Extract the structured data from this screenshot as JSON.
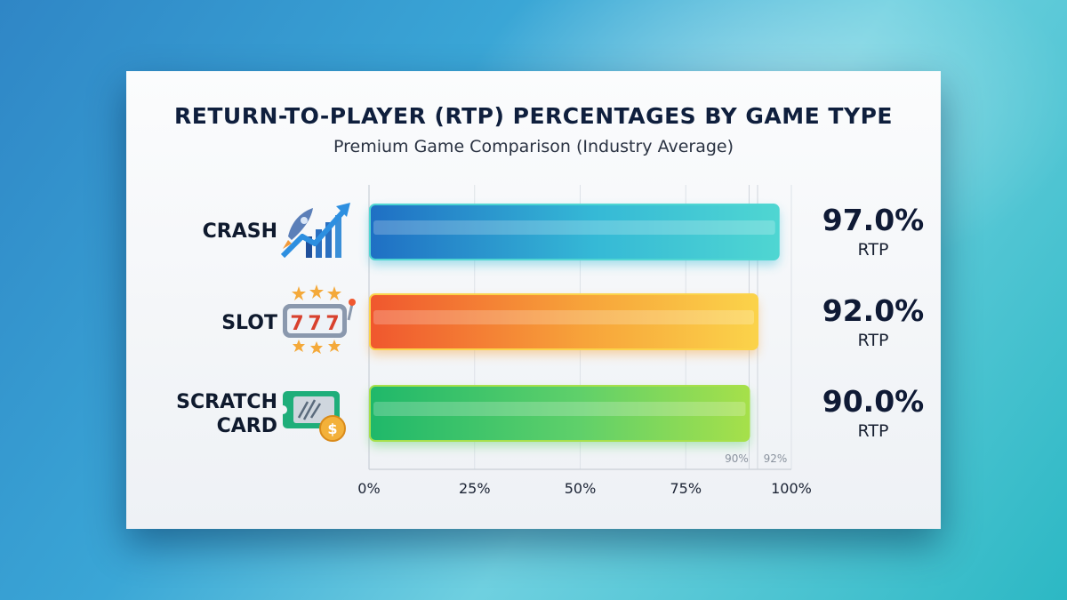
{
  "chart_data": {
    "type": "bar",
    "orientation": "horizontal",
    "title": "RETURN-TO-PLAYER (RTP) PERCENTAGES BY GAME TYPE",
    "subtitle": "Premium Game Comparison (Industry Average)",
    "categories": [
      {
        "name": "CRASH",
        "lines": [
          "CRASH"
        ],
        "icon": "rocket-growth-chart-icon"
      },
      {
        "name": "SLOT",
        "lines": [
          "SLOT"
        ],
        "icon": "slot-machine-777-icon"
      },
      {
        "name": "SCRATCH CARD",
        "lines": [
          "SCRATCH",
          "CARD"
        ],
        "icon": "scratch-card-coin-icon"
      }
    ],
    "values": [
      97.0,
      92.0,
      90.0
    ],
    "value_labels": [
      "97.0%",
      "92.0%",
      "90.0%"
    ],
    "value_unit_label": "RTP",
    "xlim": [
      0,
      100
    ],
    "x_ticks": [
      0,
      25,
      50,
      75,
      100
    ],
    "x_tick_labels": [
      "0%",
      "25%",
      "50%",
      "75%",
      "100%"
    ],
    "reference_lines": [
      {
        "value": 90,
        "label": "90%"
      },
      {
        "value": 92,
        "label": "92%"
      }
    ],
    "bar_colors": [
      [
        "#1f6fc4",
        "#35b9d6",
        "#4fd6d2"
      ],
      [
        "#f0572e",
        "#f7a33a",
        "#fbd34a"
      ],
      [
        "#1fb86a",
        "#5fd06a",
        "#a6e04a"
      ]
    ],
    "grid": true
  }
}
